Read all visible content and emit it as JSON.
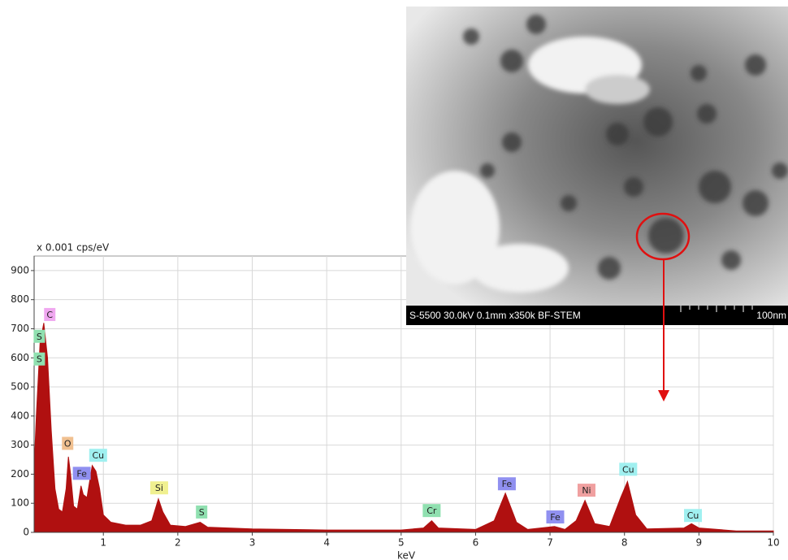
{
  "chart_data": {
    "type": "area",
    "y_label": "x 0.001 cps/eV",
    "x_label": "keV",
    "xlim": [
      0.07,
      10
    ],
    "ylim": [
      0,
      950
    ],
    "xticks": [
      1,
      2,
      3,
      4,
      5,
      6,
      7,
      8,
      9,
      10
    ],
    "yticks": [
      0,
      100,
      200,
      300,
      400,
      500,
      600,
      700,
      800,
      900
    ],
    "grid": true,
    "color": "#b01010",
    "x": [
      0.07,
      0.1,
      0.15,
      0.2,
      0.25,
      0.3,
      0.35,
      0.4,
      0.45,
      0.5,
      0.53,
      0.56,
      0.6,
      0.65,
      0.7,
      0.73,
      0.78,
      0.85,
      0.9,
      0.95,
      1.0,
      1.1,
      1.3,
      1.5,
      1.65,
      1.74,
      1.8,
      1.9,
      2.1,
      2.3,
      2.4,
      3,
      4,
      5,
      5.3,
      5.41,
      5.5,
      6,
      6.25,
      6.4,
      6.55,
      6.7,
      7.06,
      7.2,
      7.35,
      7.47,
      7.6,
      7.8,
      7.95,
      8.04,
      8.15,
      8.3,
      8.8,
      8.9,
      9.0,
      9.5,
      10
    ],
    "values": [
      220,
      400,
      650,
      720,
      600,
      350,
      150,
      80,
      70,
      150,
      260,
      200,
      90,
      80,
      160,
      130,
      120,
      230,
      210,
      150,
      60,
      35,
      25,
      25,
      40,
      115,
      70,
      25,
      20,
      35,
      18,
      12,
      8,
      8,
      15,
      40,
      15,
      10,
      40,
      135,
      35,
      10,
      20,
      10,
      40,
      110,
      30,
      20,
      120,
      175,
      60,
      12,
      15,
      30,
      15,
      5,
      5
    ],
    "annotations": [
      {
        "text": "C",
        "x": 0.28,
        "y": 749,
        "color": "#f0a8f0"
      },
      {
        "text": "S",
        "x": 0.14,
        "y": 674,
        "color": "#90e0b0"
      },
      {
        "text": "S",
        "x": 0.14,
        "y": 596,
        "color": "#90e0b0"
      },
      {
        "text": "O",
        "x": 0.52,
        "y": 306,
        "color": "#f0c090"
      },
      {
        "text": "Cu",
        "x": 0.93,
        "y": 265,
        "color": "#a0f0f0"
      },
      {
        "text": "Fe",
        "x": 0.71,
        "y": 203,
        "color": "#9090f0"
      },
      {
        "text": "Si",
        "x": 1.75,
        "y": 153,
        "color": "#f0f090"
      },
      {
        "text": "S",
        "x": 2.32,
        "y": 70,
        "color": "#90e0b0"
      },
      {
        "text": "Cr",
        "x": 5.41,
        "y": 75,
        "color": "#90e0b0"
      },
      {
        "text": "Fe",
        "x": 6.42,
        "y": 167,
        "color": "#9090f0"
      },
      {
        "text": "Fe",
        "x": 7.07,
        "y": 53,
        "color": "#9090f0"
      },
      {
        "text": "Ni",
        "x": 7.49,
        "y": 145,
        "color": "#f0a0a0"
      },
      {
        "text": "Cu",
        "x": 8.05,
        "y": 217,
        "color": "#a0f0f0"
      },
      {
        "text": "Cu",
        "x": 8.92,
        "y": 58,
        "color": "#a0f0f0"
      }
    ]
  },
  "image": {
    "caption": "S-5500 30.0kV 0.1mm x350k BF-STEM",
    "scale_label": "100nm"
  }
}
